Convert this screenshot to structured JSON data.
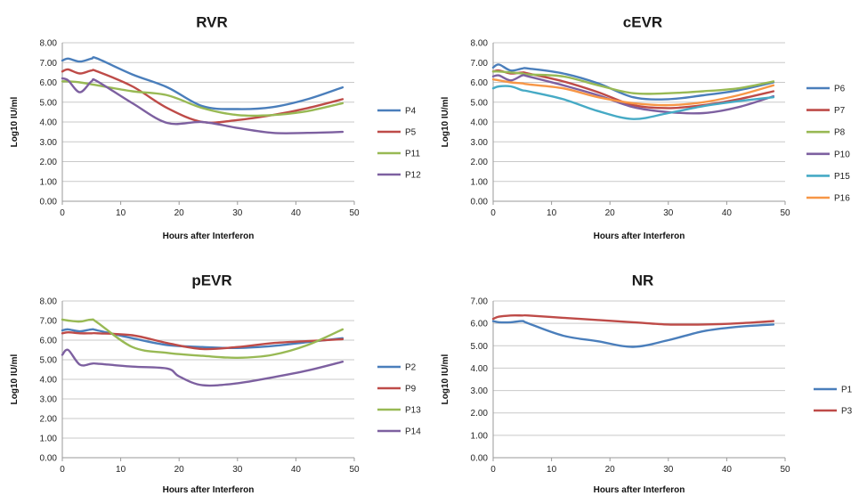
{
  "chart_data": [
    {
      "type": "line",
      "title": "RVR",
      "xlabel": "Hours after Interferon",
      "ylabel": "Log10 IU/ml",
      "xlim": [
        0,
        50
      ],
      "ylim": [
        0,
        8
      ],
      "xticks": [
        "0",
        "10",
        "20",
        "30",
        "40",
        "50"
      ],
      "yticks": [
        "0.00",
        "1.00",
        "2.00",
        "3.00",
        "4.00",
        "5.00",
        "6.00",
        "7.00",
        "8.00"
      ],
      "grid": true,
      "legend": "right",
      "series": [
        {
          "name": "P4",
          "color": "#4a7ebb",
          "x": [
            0,
            1,
            3,
            5,
            6,
            12,
            18,
            24,
            30,
            36,
            42,
            48
          ],
          "values": [
            7.1,
            7.2,
            7.05,
            7.2,
            7.2,
            6.4,
            5.75,
            4.8,
            4.65,
            4.75,
            5.15,
            5.75
          ]
        },
        {
          "name": "P5",
          "color": "#be4b48",
          "x": [
            0,
            1,
            3,
            5,
            6,
            12,
            18,
            24,
            30,
            36,
            42,
            48
          ],
          "values": [
            6.55,
            6.65,
            6.45,
            6.6,
            6.55,
            5.8,
            4.7,
            4.0,
            4.1,
            4.35,
            4.7,
            5.15
          ]
        },
        {
          "name": "P11",
          "color": "#98b954",
          "x": [
            0,
            1,
            3,
            5,
            6,
            12,
            18,
            24,
            30,
            36,
            42,
            48
          ],
          "values": [
            6.05,
            6.05,
            6.0,
            5.9,
            5.85,
            5.55,
            5.35,
            4.7,
            4.35,
            4.35,
            4.55,
            4.95
          ]
        },
        {
          "name": "P12",
          "color": "#7d60a0",
          "x": [
            0,
            1,
            3,
            5,
            6,
            12,
            18,
            24,
            30,
            36,
            42,
            48
          ],
          "values": [
            6.2,
            6.1,
            5.5,
            6.05,
            6.05,
            4.95,
            3.95,
            4.0,
            3.7,
            3.45,
            3.45,
            3.5
          ]
        }
      ]
    },
    {
      "type": "line",
      "title": "cEVR",
      "xlabel": "Hours after Interferon",
      "ylabel": "Log10 IU/ml",
      "xlim": [
        0,
        50
      ],
      "ylim": [
        0,
        8
      ],
      "xticks": [
        "0",
        "10",
        "20",
        "30",
        "40",
        "50"
      ],
      "yticks": [
        "0.00",
        "1.00",
        "2.00",
        "3.00",
        "4.00",
        "5.00",
        "6.00",
        "7.00",
        "8.00"
      ],
      "grid": true,
      "legend": "right",
      "series": [
        {
          "name": "P6",
          "color": "#4a7ebb",
          "x": [
            0,
            1,
            3,
            5,
            6,
            12,
            18,
            24,
            30,
            36,
            42,
            48
          ],
          "values": [
            6.75,
            6.9,
            6.6,
            6.7,
            6.7,
            6.45,
            5.95,
            5.25,
            5.15,
            5.35,
            5.6,
            6.0
          ]
        },
        {
          "name": "P7",
          "color": "#be4b48",
          "x": [
            0,
            1,
            3,
            5,
            6,
            12,
            18,
            24,
            30,
            36,
            42,
            48
          ],
          "values": [
            6.55,
            6.6,
            6.45,
            6.5,
            6.45,
            6.05,
            5.5,
            4.85,
            4.7,
            4.85,
            5.15,
            5.55
          ]
        },
        {
          "name": "P8",
          "color": "#98b954",
          "x": [
            0,
            1,
            3,
            5,
            6,
            12,
            18,
            24,
            30,
            36,
            42,
            48
          ],
          "values": [
            6.55,
            6.55,
            6.5,
            6.45,
            6.4,
            6.3,
            5.85,
            5.45,
            5.45,
            5.55,
            5.7,
            6.05
          ]
        },
        {
          "name": "P10",
          "color": "#7d60a0",
          "x": [
            0,
            1,
            3,
            5,
            6,
            12,
            18,
            24,
            30,
            36,
            42,
            48
          ],
          "values": [
            6.3,
            6.35,
            6.1,
            6.35,
            6.3,
            5.85,
            5.35,
            4.75,
            4.5,
            4.45,
            4.75,
            5.3
          ]
        },
        {
          "name": "P15",
          "color": "#46aac5",
          "x": [
            0,
            1,
            3,
            5,
            6,
            12,
            18,
            24,
            30,
            36,
            42,
            48
          ],
          "values": [
            5.7,
            5.8,
            5.8,
            5.6,
            5.55,
            5.15,
            4.55,
            4.15,
            4.45,
            4.8,
            5.05,
            5.25
          ]
        },
        {
          "name": "P16",
          "color": "#f79646",
          "x": [
            0,
            1,
            3,
            5,
            6,
            12,
            18,
            24,
            30,
            36,
            42,
            48
          ],
          "values": [
            6.15,
            6.1,
            6.0,
            5.95,
            5.9,
            5.7,
            5.25,
            4.95,
            4.85,
            5.0,
            5.35,
            5.85
          ]
        }
      ]
    },
    {
      "type": "line",
      "title": "pEVR",
      "xlabel": "Hours after Interferon",
      "ylabel": "Log10 IU/ml",
      "xlim": [
        0,
        50
      ],
      "ylim": [
        0,
        8
      ],
      "xticks": [
        "0",
        "10",
        "20",
        "30",
        "40",
        "50"
      ],
      "yticks": [
        "0.00",
        "1.00",
        "2.00",
        "3.00",
        "4.00",
        "5.00",
        "6.00",
        "7.00",
        "8.00"
      ],
      "grid": true,
      "legend": "right",
      "series": [
        {
          "name": "P2",
          "color": "#4a7ebb",
          "x": [
            0,
            1,
            3,
            5,
            6,
            12,
            18,
            24,
            30,
            36,
            42,
            48
          ],
          "values": [
            6.5,
            6.55,
            6.45,
            6.55,
            6.5,
            6.1,
            5.75,
            5.65,
            5.6,
            5.7,
            5.9,
            6.1
          ]
        },
        {
          "name": "P9",
          "color": "#be4b48",
          "x": [
            0,
            1,
            3,
            5,
            6,
            12,
            18,
            24,
            30,
            36,
            42,
            48
          ],
          "values": [
            6.35,
            6.4,
            6.35,
            6.35,
            6.35,
            6.25,
            5.85,
            5.55,
            5.65,
            5.85,
            5.95,
            6.05
          ]
        },
        {
          "name": "P13",
          "color": "#98b954",
          "x": [
            0,
            1,
            3,
            5,
            6,
            12,
            18,
            24,
            30,
            36,
            42,
            48
          ],
          "values": [
            7.05,
            7.0,
            6.95,
            7.05,
            6.9,
            5.65,
            5.35,
            5.2,
            5.1,
            5.25,
            5.75,
            6.55
          ]
        },
        {
          "name": "P14",
          "color": "#7d60a0",
          "x": [
            0,
            1,
            3,
            5,
            6,
            12,
            18,
            20,
            24,
            30,
            36,
            42,
            48
          ],
          "values": [
            5.25,
            5.5,
            4.75,
            4.8,
            4.8,
            4.65,
            4.55,
            4.15,
            3.7,
            3.8,
            4.1,
            4.45,
            4.9
          ]
        }
      ]
    },
    {
      "type": "line",
      "title": "NR",
      "xlabel": "Hours after Interferon",
      "ylabel": "Log10 IU/ml",
      "xlim": [
        0,
        50
      ],
      "ylim": [
        0,
        7
      ],
      "xticks": [
        "0",
        "10",
        "20",
        "30",
        "40",
        "50"
      ],
      "yticks": [
        "0.00",
        "1.00",
        "2.00",
        "3.00",
        "4.00",
        "5.00",
        "6.00",
        "7.00"
      ],
      "grid": true,
      "legend": "right",
      "series": [
        {
          "name": "P1",
          "color": "#4a7ebb",
          "x": [
            0,
            1,
            3,
            5,
            6,
            12,
            18,
            24,
            30,
            36,
            42,
            48
          ],
          "values": [
            6.1,
            6.05,
            6.05,
            6.1,
            6.0,
            5.45,
            5.2,
            4.95,
            5.25,
            5.65,
            5.85,
            5.95
          ]
        },
        {
          "name": "P3",
          "color": "#be4b48",
          "x": [
            0,
            1,
            3,
            5,
            6,
            12,
            18,
            24,
            30,
            36,
            42,
            48
          ],
          "values": [
            6.2,
            6.3,
            6.35,
            6.35,
            6.35,
            6.25,
            6.15,
            6.05,
            5.95,
            5.95,
            6.0,
            6.1
          ]
        }
      ]
    }
  ]
}
